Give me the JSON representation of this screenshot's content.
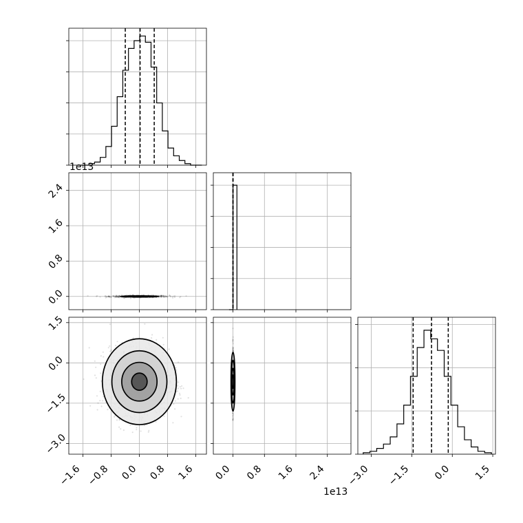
{
  "chart_data": [
    {
      "type": "histogram",
      "panel": "diagonal-1",
      "bin_edges": [
        -1.75,
        -1.59,
        -1.43,
        -1.27,
        -1.11,
        -0.95,
        -0.79,
        -0.63,
        -0.47,
        -0.31,
        -0.15,
        0.01,
        0.17,
        0.33,
        0.49,
        0.65,
        0.81,
        0.97,
        1.13,
        1.29,
        1.45,
        1.61,
        1.77
      ],
      "counts": [
        0,
        0,
        1,
        2,
        5,
        12,
        25,
        44,
        61,
        75,
        80,
        83,
        79,
        63,
        40,
        22,
        11,
        6,
        3,
        1,
        0,
        0
      ],
      "quantiles": [
        -0.4,
        0.02,
        0.42
      ],
      "xlim": [
        -2.0,
        1.9
      ],
      "ylim": [
        0,
        88
      ]
    },
    {
      "type": "histogram",
      "panel": "diagonal-2",
      "bin_edges": [
        -0.1,
        0.0,
        0.1
      ],
      "counts": [
        0,
        100,
        0
      ],
      "quantiles": [
        0.0,
        0.0,
        0.0
      ],
      "xlim": [
        -0.5,
        3.0
      ],
      "ylim": [
        0,
        110
      ]
    },
    {
      "type": "histogram",
      "panel": "diagonal-3",
      "bin_edges": [
        -3.3,
        -3.05,
        -2.8,
        -2.55,
        -2.3,
        -2.05,
        -1.8,
        -1.55,
        -1.3,
        -1.05,
        -0.8,
        -0.55,
        -0.3,
        -0.05,
        0.2,
        0.45,
        0.7,
        0.95,
        1.2,
        1.45
      ],
      "counts": [
        1,
        2,
        4,
        7,
        12,
        21,
        34,
        54,
        74,
        86,
        80,
        72,
        54,
        34,
        19,
        10,
        5,
        2,
        1
      ],
      "quantiles": [
        -1.45,
        -0.77,
        -0.15
      ],
      "xlim": [
        -3.5,
        1.6
      ],
      "ylim": [
        0,
        95
      ]
    },
    {
      "type": "scatter",
      "panel": "param2-vs-param1",
      "center": [
        0.0,
        0.0
      ],
      "spread": [
        0.42,
        0.012
      ],
      "contour_radii": [
        [
          0.55,
          0.012
        ],
        [
          0.4,
          0.009
        ],
        [
          0.25,
          0.006
        ],
        [
          0.12,
          0.004
        ]
      ],
      "xlim": [
        -2.0,
        1.9
      ],
      "ylim": [
        -0.3,
        2.8
      ]
    },
    {
      "type": "scatter",
      "panel": "param3-vs-param1",
      "center": [
        0.0,
        -0.7
      ],
      "spread": [
        0.42,
        0.6
      ],
      "contour_radii": [
        [
          1.05,
          1.6
        ],
        [
          0.78,
          1.15
        ],
        [
          0.5,
          0.72
        ],
        [
          0.22,
          0.32
        ]
      ],
      "xlim": [
        -2.0,
        1.9
      ],
      "ylim": [
        -3.4,
        1.7
      ]
    },
    {
      "type": "scatter",
      "panel": "param3-vs-param2",
      "center": [
        0.0,
        -0.7
      ],
      "spread": [
        0.005,
        0.6
      ],
      "contour_radii": [
        [
          0.05,
          1.1
        ],
        [
          0.04,
          0.8
        ],
        [
          0.03,
          0.5
        ],
        [
          0.02,
          0.25
        ]
      ],
      "xlim": [
        -0.5,
        3.0
      ],
      "ylim": [
        -3.4,
        1.7
      ]
    }
  ],
  "axes": {
    "param1_ticks": [
      "−1.6",
      "−0.8",
      "0.0",
      "0.8",
      "1.6"
    ],
    "param1_tick_values": [
      -1.6,
      -0.8,
      0.0,
      0.8,
      1.6
    ],
    "param2_ticks": [
      "0.0",
      "0.8",
      "1.6",
      "2.4"
    ],
    "param2_tick_values": [
      0.0,
      0.8,
      1.6,
      2.4
    ],
    "param3_ticks": [
      "−3.0",
      "−1.5",
      "0.0",
      "1.5"
    ],
    "param3_tick_values": [
      -3.0,
      -1.5,
      0.0,
      1.5
    ],
    "offset_label_y": "1e13",
    "offset_label_x": "1e13"
  }
}
